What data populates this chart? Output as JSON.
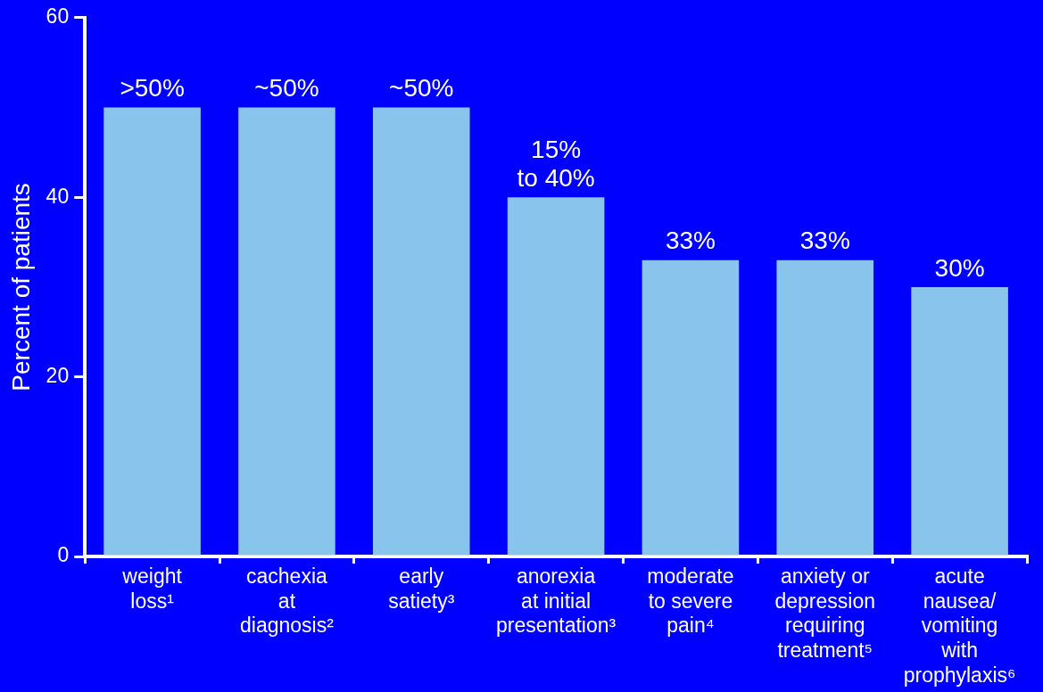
{
  "chart_data": {
    "type": "bar",
    "ylabel": "Percent of patients",
    "categories": [
      "weight\nloss¹",
      "cachexia\nat\ndiagnosis²",
      "early\nsatiety³",
      "anorexia\nat initial\npresentation³",
      "moderate\nto severe\npain⁴",
      "anxiety or\ndepression\nrequiring\ntreatment⁵",
      "acute\nnausea/\nvomiting\nwith\nprophylaxis⁶"
    ],
    "values": [
      50,
      50,
      50,
      40,
      33,
      33,
      30
    ],
    "value_labels": [
      ">50%",
      "~50%",
      "~50%",
      "15%\nto 40%",
      "33%",
      "33%",
      "30%"
    ],
    "color": "#88c4ec",
    "ylim": [
      0,
      60
    ],
    "yticks": [
      0,
      20,
      40,
      60
    ],
    "grid": false,
    "legend": false
  }
}
